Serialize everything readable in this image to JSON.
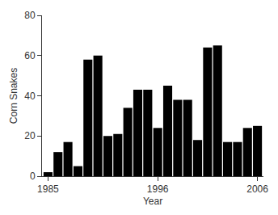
{
  "chart_data": {
    "type": "bar",
    "x": [
      1985,
      1986,
      1987,
      1988,
      1989,
      1990,
      1991,
      1992,
      1993,
      1994,
      1995,
      1996,
      1997,
      1998,
      1999,
      2000,
      2001,
      2002,
      2003,
      2004,
      2005,
      2006
    ],
    "values": [
      2,
      12,
      17,
      5,
      58,
      60,
      20,
      21,
      34,
      43,
      43,
      24,
      45,
      38,
      38,
      18,
      64,
      65,
      17,
      17,
      24,
      25
    ],
    "color": "#000000",
    "x_label": "Year",
    "y_label": "Corn Snakes",
    "xlim": [
      1984.4,
      2006.6
    ],
    "xticks": [
      1985,
      1996,
      2006
    ],
    "ylim": [
      0,
      80
    ],
    "yticks": [
      0,
      20,
      40,
      60,
      80
    ],
    "grid": false
  }
}
